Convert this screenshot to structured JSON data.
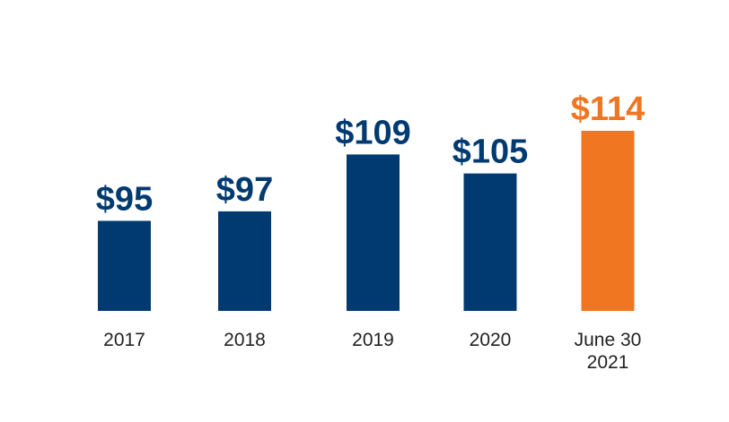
{
  "chart_data": {
    "type": "bar",
    "categories": [
      [
        "2017"
      ],
      [
        "2018"
      ],
      [
        "2019"
      ],
      [
        "2020"
      ],
      [
        "June 30",
        "2021"
      ]
    ],
    "values": [
      95,
      97,
      109,
      105,
      114
    ],
    "value_labels": [
      "$95",
      "$97",
      "$109",
      "$105",
      "$114"
    ],
    "bar_colors": [
      "#003a70",
      "#003a70",
      "#003a70",
      "#003a70",
      "#f07622"
    ],
    "title": "",
    "xlabel": "",
    "ylabel": "",
    "ylim": [
      76,
      114
    ],
    "grid": false,
    "legend": "none"
  }
}
